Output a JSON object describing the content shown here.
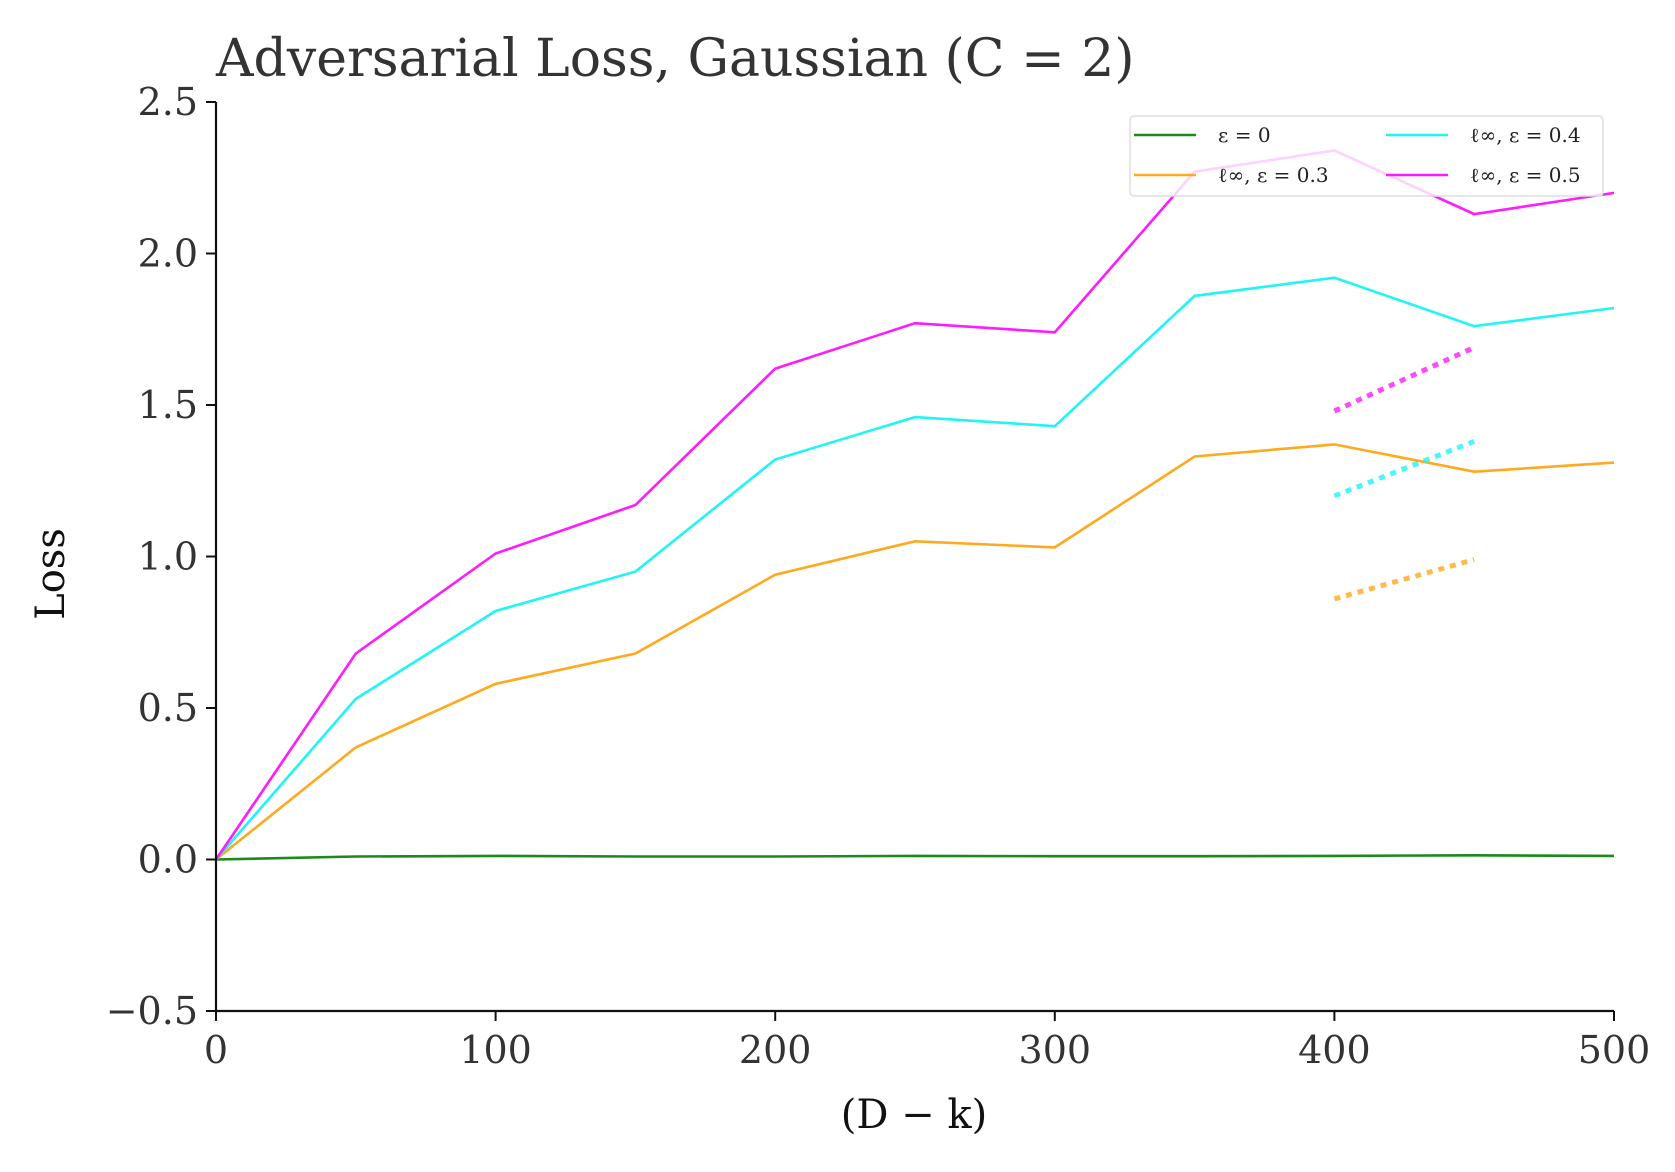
{
  "chart_data": {
    "type": "line",
    "title": "Adversarial Loss, Gaussian (C = 2)",
    "xlabel": "(D − k)",
    "ylabel": "Loss",
    "xlim": [
      0,
      500
    ],
    "ylim": [
      -0.5,
      2.5
    ],
    "x_ticks": [
      0,
      100,
      200,
      300,
      400,
      500
    ],
    "x_tick_labels": [
      "0",
      "100",
      "200",
      "300",
      "400",
      "500"
    ],
    "y_ticks": [
      -0.5,
      0.0,
      0.5,
      1.0,
      1.5,
      2.0,
      2.5
    ],
    "y_tick_labels": [
      "−0.5",
      "0.0",
      "0.5",
      "1.0",
      "1.5",
      "2.0",
      "2.5"
    ],
    "grid": false,
    "legend": {
      "position": "top-right",
      "columns": 2
    },
    "x": [
      0,
      50,
      100,
      150,
      200,
      250,
      300,
      350,
      400,
      450,
      500
    ],
    "series": [
      {
        "name": "ε = 0",
        "color": "#1a8a1a",
        "style": "solid",
        "values": [
          0.0,
          0.01,
          0.012,
          0.01,
          0.01,
          0.012,
          0.011,
          0.011,
          0.012,
          0.014,
          0.012
        ]
      },
      {
        "name": "ℓ∞, ε = 0.3",
        "color": "#ffa91f",
        "style": "solid",
        "values": [
          0.0,
          0.37,
          0.58,
          0.68,
          0.94,
          1.05,
          1.03,
          1.33,
          1.37,
          1.28,
          1.31
        ]
      },
      {
        "name": "ℓ∞, ε = 0.4",
        "color": "#1ff5f5",
        "style": "solid",
        "values": [
          0.0,
          0.53,
          0.82,
          0.95,
          1.32,
          1.46,
          1.43,
          1.86,
          1.92,
          1.76,
          1.82
        ]
      },
      {
        "name": "ℓ∞, ε = 0.5",
        "color": "#ff1aff",
        "style": "solid",
        "values": [
          0.0,
          0.68,
          1.01,
          1.17,
          1.62,
          1.77,
          1.74,
          2.27,
          2.34,
          2.13,
          2.2
        ]
      }
    ],
    "annotations": [
      {
        "color": "#ffa91f",
        "style": "dotted",
        "x": [
          400,
          450
        ],
        "y": [
          0.86,
          0.99
        ]
      },
      {
        "color": "#1ff5f5",
        "style": "dotted",
        "x": [
          400,
          450
        ],
        "y": [
          1.2,
          1.38
        ]
      },
      {
        "color": "#ff1aff",
        "style": "dotted",
        "x": [
          400,
          450
        ],
        "y": [
          1.48,
          1.69
        ]
      }
    ]
  }
}
